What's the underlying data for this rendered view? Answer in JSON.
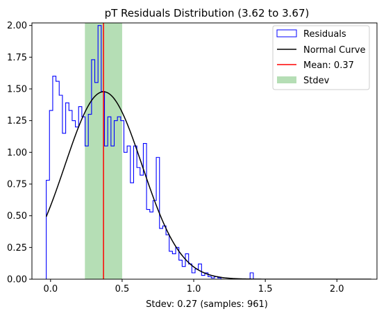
{
  "chart_data": {
    "type": "histogram",
    "title": "pT Residuals Distribution (3.62 to 3.67)",
    "xlabel": "Stdev: 0.27 (samples: 961)",
    "ylabel": "",
    "xlim": [
      -0.13,
      2.28
    ],
    "ylim": [
      0,
      2.02
    ],
    "xticks": [
      0.0,
      0.5,
      1.0,
      1.5,
      2.0
    ],
    "xtick_labels": [
      "0.0",
      "0.5",
      "1.0",
      "1.5",
      "2.0"
    ],
    "yticks": [
      0.0,
      0.25,
      0.5,
      0.75,
      1.0,
      1.25,
      1.5,
      1.75,
      2.0
    ],
    "ytick_labels": [
      "0.00",
      "0.25",
      "0.50",
      "0.75",
      "1.00",
      "1.25",
      "1.50",
      "1.75",
      "2.00"
    ],
    "grid": false,
    "legend_position": "top-right",
    "colors": {
      "histogram": "#0000ff",
      "normal_curve": "#000000",
      "mean_line": "#ff0000",
      "stdev_band": "#2ca02c"
    },
    "histogram": {
      "name": "Residuals",
      "bin_start": -0.03,
      "bin_width": 0.0226,
      "values": [
        0.78,
        1.33,
        1.6,
        1.56,
        1.45,
        1.15,
        1.39,
        1.33,
        1.25,
        1.2,
        1.36,
        1.28,
        1.05,
        1.3,
        1.73,
        1.55,
        2.0,
        1.48,
        1.05,
        1.28,
        1.05,
        1.25,
        1.28,
        1.25,
        1.0,
        1.05,
        0.76,
        1.05,
        0.88,
        0.82,
        1.07,
        0.55,
        0.53,
        0.62,
        0.96,
        0.4,
        0.42,
        0.35,
        0.22,
        0.2,
        0.25,
        0.15,
        0.1,
        0.2,
        0.12,
        0.05,
        0.08,
        0.12,
        0.03,
        0.05,
        0.02,
        0.01,
        0.02,
        0.01,
        0.0,
        0.0,
        0.0,
        0.0,
        0.0,
        0.0,
        0.0,
        0.0,
        0.0,
        0.05,
        0.0,
        0.0,
        0.0,
        0.0,
        0.0,
        0.0,
        0.0,
        0.0,
        0.0,
        0.0,
        0.0,
        0.0,
        0.0,
        0.0,
        0.0,
        0.0,
        0.0,
        0.0,
        0.0,
        0.0,
        0.0,
        0.0,
        0.0,
        0.0,
        0.0,
        0.0,
        0.0,
        0.0,
        0.0,
        0.0,
        0.0,
        0.0,
        0.0,
        0.0,
        0.0,
        0.0,
        0.0,
        0.0,
        0.0,
        0.0,
        0.0,
        0.0,
        0.0,
        0.0,
        0.0,
        0.0,
        0.0,
        0.0,
        0.0,
        0.0,
        0.0,
        0.0,
        0.0,
        0.0,
        0.0,
        0.0,
        0.0,
        0.0,
        0.0,
        0.0,
        0.0,
        0.0,
        0.0,
        0.0,
        0.0,
        0.0,
        0.0,
        0.0,
        0.0,
        0.0,
        0.0,
        0.0,
        0.0,
        0.0,
        0.0,
        0.0,
        0.0,
        0.0,
        0.0,
        0.0,
        0.0,
        0.0,
        0.0,
        0.0,
        0.0,
        0.0,
        0.0,
        0.0,
        0.0,
        0.0,
        0.0,
        0.0,
        0.0,
        0.0,
        0.0,
        0.0,
        0.0,
        0.0,
        0.0,
        0.0,
        0.0,
        0.0,
        0.0,
        0.05,
        0.0,
        0.0,
        0.0,
        0.0,
        0.0,
        0.0,
        0.0,
        0.0,
        0.0,
        0.0,
        0.0,
        0.0,
        0.0,
        0.0,
        0.0,
        0.0,
        0.0,
        0.0,
        0.0,
        0.0,
        0.05
      ]
    },
    "normal_curve": {
      "name": "Normal Curve",
      "mean": 0.37,
      "stdev": 0.27,
      "x_range": [
        -0.03,
        2.24
      ]
    },
    "mean_line": {
      "name": "Mean: 0.37",
      "x": 0.37
    },
    "stdev_band": {
      "name": "Stdev",
      "x_min": 0.24,
      "x_max": 0.5
    },
    "legend": [
      "Residuals",
      "Normal Curve",
      "Mean: 0.37",
      "Stdev"
    ]
  }
}
